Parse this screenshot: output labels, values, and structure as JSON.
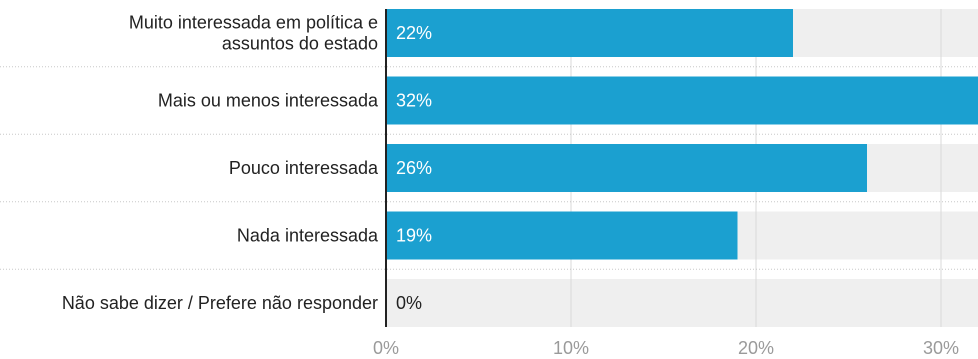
{
  "chart_data": {
    "type": "bar",
    "orientation": "horizontal",
    "categories": [
      [
        "Muito interessada em política e",
        "assuntos do estado"
      ],
      [
        "Mais ou menos interessada"
      ],
      [
        "Pouco interessada"
      ],
      [
        "Nada interessada"
      ],
      [
        "Não sabe dizer / Prefere não responder"
      ]
    ],
    "values": [
      22,
      32,
      26,
      19,
      0
    ],
    "value_labels": [
      "22%",
      "32%",
      "26%",
      "19%",
      "0%"
    ],
    "xlim": [
      0,
      32
    ],
    "x_ticks": [
      0,
      10,
      20,
      30
    ],
    "x_tick_labels": [
      "0%",
      "10%",
      "20%",
      "30%"
    ],
    "grid": true,
    "bar_color": "#1ba0d0",
    "track_color": "#efefef",
    "value_label_color_on_bar": "#ffffff",
    "value_label_color_off_bar": "#222222",
    "gridline_color": "#d8d8d8",
    "axis_color": "#222222"
  }
}
